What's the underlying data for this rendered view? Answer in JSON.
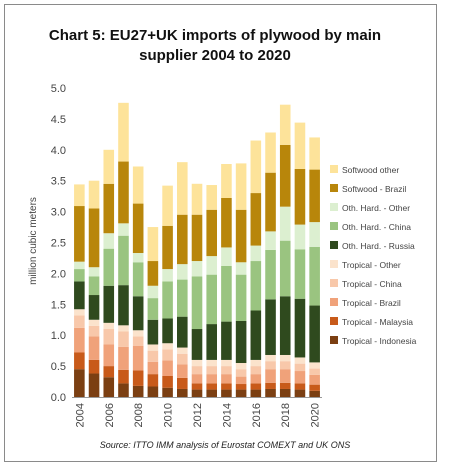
{
  "page": {
    "title": "Chart 5: EU27+UK imports of plywood by main supplier 2004 to 2020",
    "source": "Source: ITTO IMM analysis of Eurostat COMEXT and UK ONS"
  },
  "chart_data": {
    "type": "bar",
    "stacked": true,
    "title": "Chart 5: EU27+UK imports of plywood by main supplier 2004 to 2020",
    "xlabel": "",
    "ylabel": "million cubic meters",
    "ylim": [
      0,
      5
    ],
    "yticks": [
      "0.0",
      "0.5",
      "1.0",
      "1.5",
      "2.0",
      "2.5",
      "3.0",
      "3.5",
      "4.0",
      "4.5",
      "5.0"
    ],
    "grid": false,
    "legend_position": "right",
    "categories": [
      "2004",
      "2005",
      "2006",
      "2007",
      "2008",
      "2009",
      "2010",
      "2011",
      "2012",
      "2013",
      "2014",
      "2015",
      "2016",
      "2017",
      "2018",
      "2019",
      "2020"
    ],
    "xtick_labels": [
      "2004",
      "2006",
      "2008",
      "2010",
      "2012",
      "2014",
      "2016",
      "2018",
      "2020"
    ],
    "series": [
      {
        "name": "Tropical - Indonesia",
        "color": "#7b3f12",
        "values": [
          0.45,
          0.38,
          0.32,
          0.22,
          0.18,
          0.17,
          0.15,
          0.13,
          0.12,
          0.12,
          0.12,
          0.12,
          0.12,
          0.13,
          0.13,
          0.12,
          0.1
        ]
      },
      {
        "name": "Tropical - Malaysia",
        "color": "#c85a1a",
        "values": [
          0.27,
          0.22,
          0.18,
          0.22,
          0.25,
          0.2,
          0.19,
          0.18,
          0.1,
          0.1,
          0.1,
          0.09,
          0.1,
          0.1,
          0.1,
          0.1,
          0.1
        ]
      },
      {
        "name": "Tropical - Brazil",
        "color": "#f0a27a",
        "values": [
          0.4,
          0.38,
          0.35,
          0.37,
          0.4,
          0.2,
          0.25,
          0.22,
          0.15,
          0.15,
          0.15,
          0.12,
          0.15,
          0.22,
          0.22,
          0.2,
          0.16
        ]
      },
      {
        "name": "Tropical - China",
        "color": "#f8c8aa",
        "values": [
          0.2,
          0.17,
          0.25,
          0.25,
          0.15,
          0.18,
          0.18,
          0.17,
          0.13,
          0.13,
          0.13,
          0.12,
          0.13,
          0.13,
          0.13,
          0.12,
          0.1
        ]
      },
      {
        "name": "Tropical - Other",
        "color": "#fbe3cc",
        "values": [
          0.1,
          0.1,
          0.1,
          0.1,
          0.1,
          0.1,
          0.1,
          0.1,
          0.1,
          0.1,
          0.1,
          0.1,
          0.1,
          0.1,
          0.1,
          0.1,
          0.1
        ]
      },
      {
        "name": "Oth. Hard. - Russia",
        "color": "#2f4a1e",
        "values": [
          0.45,
          0.4,
          0.6,
          0.65,
          0.55,
          0.4,
          0.4,
          0.5,
          0.5,
          0.58,
          0.62,
          0.68,
          0.8,
          0.9,
          0.95,
          0.95,
          0.92
        ]
      },
      {
        "name": "Oth. Hard. - China",
        "color": "#9ac480",
        "values": [
          0.2,
          0.3,
          0.6,
          0.8,
          0.55,
          0.35,
          0.6,
          0.6,
          0.85,
          0.8,
          0.9,
          0.75,
          0.8,
          0.8,
          0.9,
          0.8,
          0.95
        ]
      },
      {
        "name": "Oth. Hard. - Other",
        "color": "#dcefd0",
        "values": [
          0.12,
          0.15,
          0.25,
          0.2,
          0.15,
          0.2,
          0.2,
          0.25,
          0.25,
          0.3,
          0.3,
          0.2,
          0.25,
          0.3,
          0.55,
          0.4,
          0.4
        ]
      },
      {
        "name": "Softwood - Brazil",
        "color": "#b8860b",
        "values": [
          0.9,
          0.95,
          0.8,
          1.0,
          0.8,
          0.4,
          0.7,
          0.8,
          0.75,
          0.75,
          0.8,
          0.85,
          0.85,
          0.95,
          1.0,
          0.9,
          0.85
        ]
      },
      {
        "name": "Softwood other",
        "color": "#fde39a",
        "values": [
          0.35,
          0.45,
          0.55,
          0.95,
          0.6,
          0.55,
          0.65,
          0.85,
          0.5,
          0.4,
          0.55,
          0.75,
          0.85,
          0.65,
          0.65,
          0.75,
          0.52
        ]
      }
    ]
  }
}
